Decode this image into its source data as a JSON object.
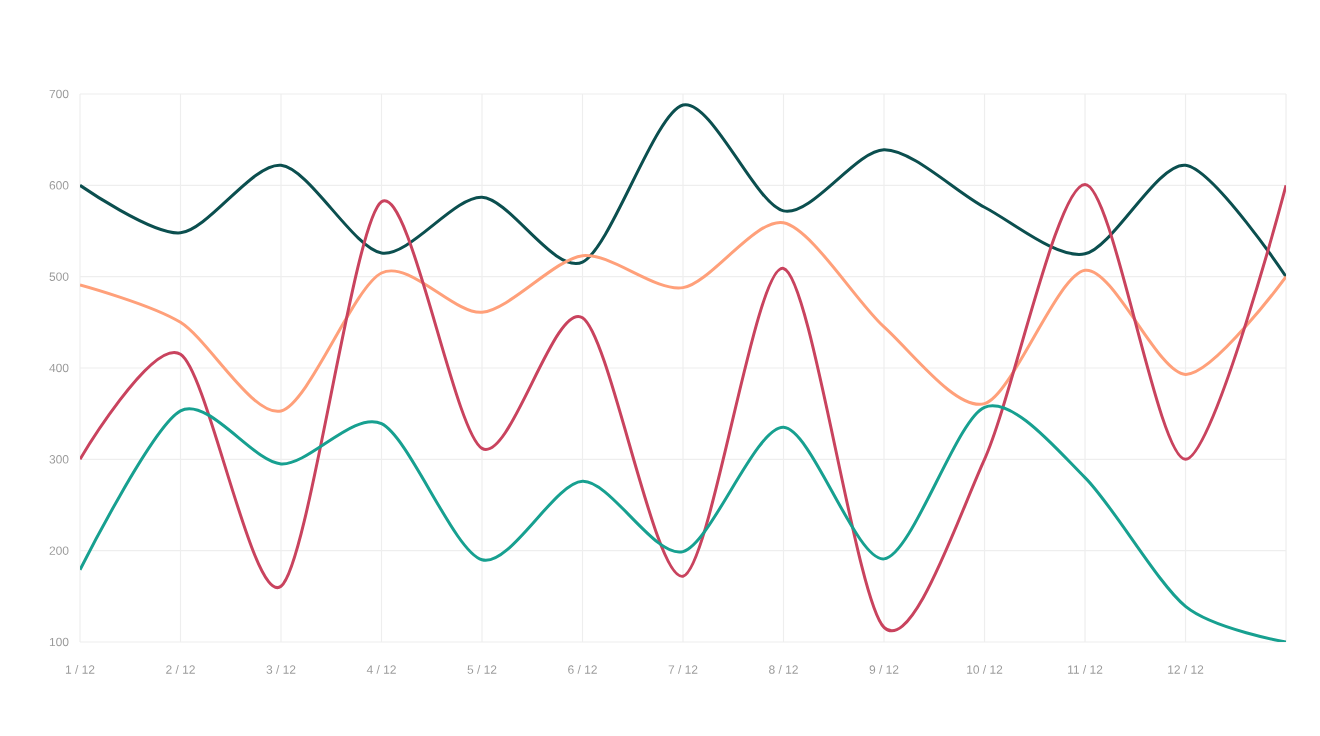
{
  "chart_data": {
    "type": "line",
    "categories": [
      "1 / 12",
      "2 / 12",
      "3 / 12",
      "4 / 12",
      "5 / 12",
      "6 / 12",
      "7 / 12",
      "8 / 12",
      "9 / 12",
      "10 / 12",
      "11 / 12",
      "12 / 12",
      null
    ],
    "series": [
      {
        "color": "#0b4f4f",
        "values": [
          600,
          548,
          622,
          526,
          587,
          516,
          688,
          572,
          639,
          576,
          525,
          622,
          500
        ]
      },
      {
        "color": "#ffa07a",
        "values": [
          491,
          450,
          353,
          504,
          461,
          523,
          488,
          559,
          445,
          361,
          507,
          393,
          500
        ]
      },
      {
        "color": "#c9435e",
        "values": [
          300,
          415,
          161,
          582,
          312,
          455,
          172,
          509,
          116,
          300,
          601,
          300,
          600
        ]
      },
      {
        "color": "#17a090",
        "values": [
          179,
          353,
          295,
          339,
          190,
          276,
          199,
          335,
          191,
          357,
          280,
          139,
          100
        ]
      }
    ],
    "ylim": [
      100,
      700
    ],
    "yticks": [
      100,
      200,
      300,
      400,
      500,
      600,
      700
    ],
    "grid": true,
    "marker": "none",
    "line_style": "solid"
  }
}
